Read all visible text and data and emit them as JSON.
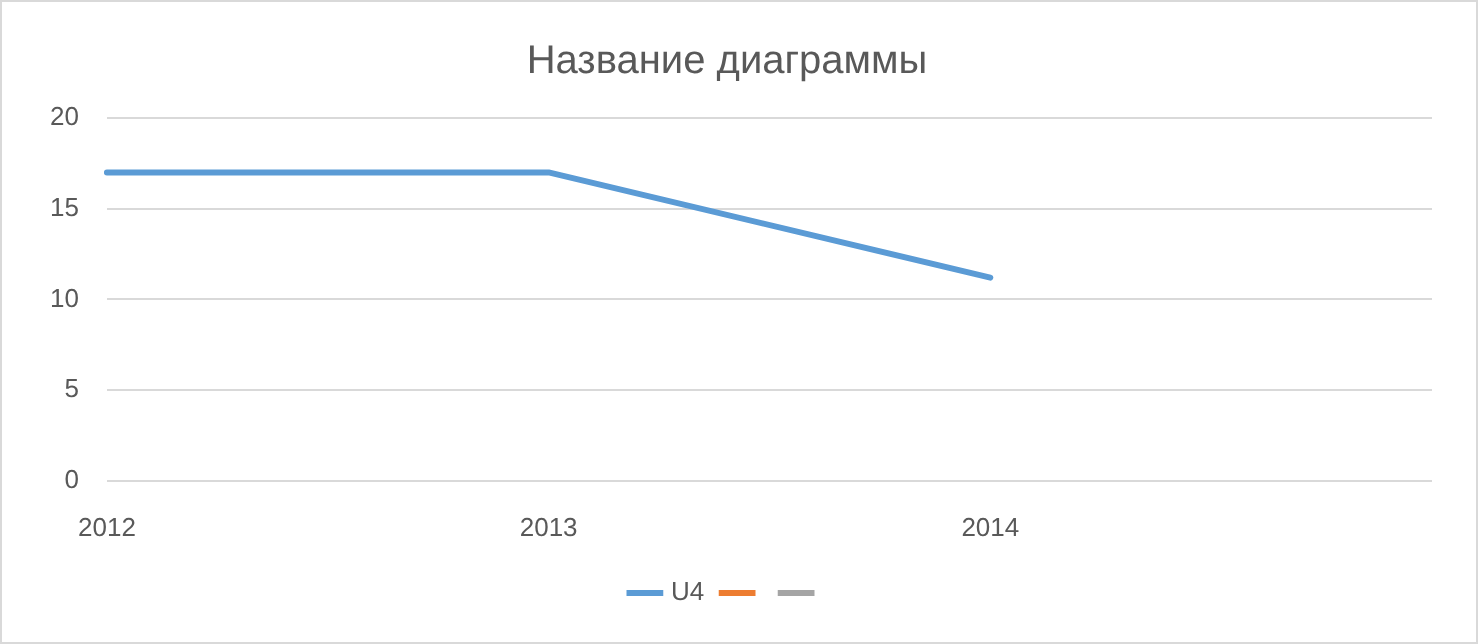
{
  "chart_data": {
    "type": "line",
    "title": "Название диаграммы",
    "categories": [
      "2012",
      "2013",
      "2014",
      null
    ],
    "series": [
      {
        "name": "U4",
        "color": "#5b9bd5",
        "values": [
          17,
          17,
          11.2,
          null
        ]
      },
      {
        "color": "#ed7d31",
        "values": [
          null,
          null,
          null,
          null
        ]
      },
      {
        "color": "#a5a5a5",
        "values": [
          null,
          null,
          null,
          null
        ]
      }
    ],
    "ylim": [
      0,
      20
    ],
    "yticks": [
      0,
      5,
      10,
      15,
      20
    ],
    "grid": "y",
    "legend": "bottom",
    "marker": "none",
    "line_style": "solid"
  }
}
